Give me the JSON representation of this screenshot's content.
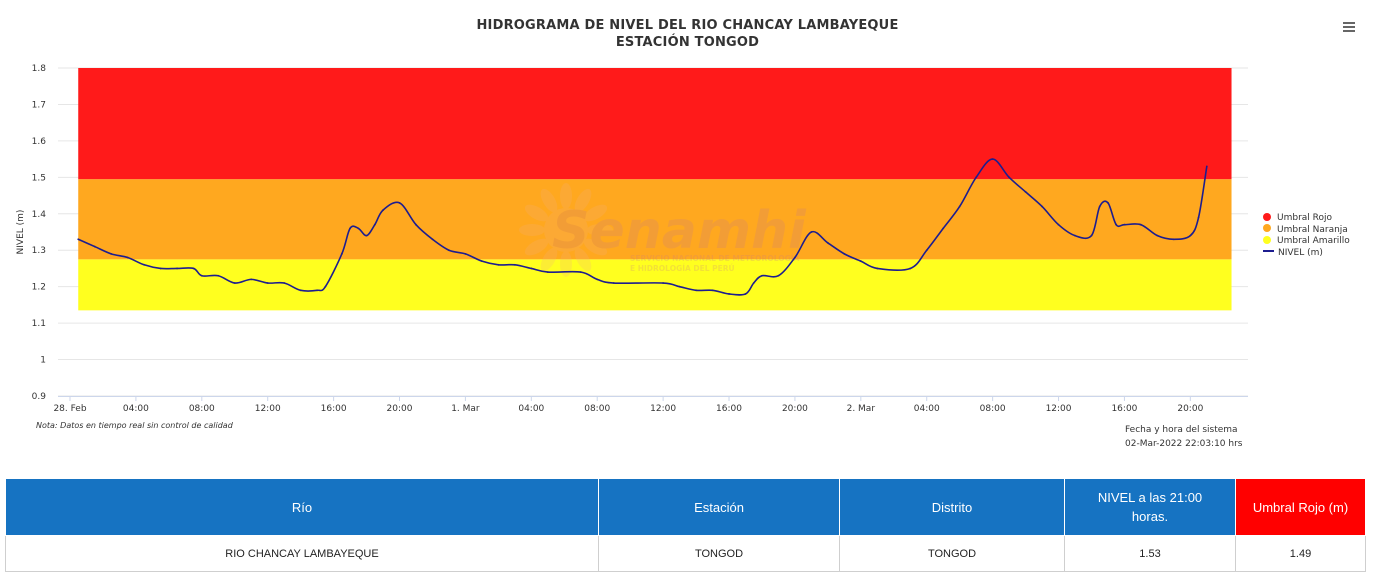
{
  "header": {
    "title_line1": "HIDROGRAMA DE NIVEL DEL RIO CHANCAY LAMBAYEQUE",
    "title_line2": "ESTACIÓN TONGOD",
    "menu_icon": "hamburger-menu-icon"
  },
  "watermark": {
    "brand": "Senamhi",
    "line1": "SERVICIO NACIONAL DE METEOROLOGÍA",
    "line2": "E HIDROLOGÍA DEL PERÚ"
  },
  "note": "Nota: Datos en tiempo real sin control de calidad",
  "system_time": {
    "label": "Fecha y hora del sistema",
    "value": "02-Mar-2022 22:03:10 hrs"
  },
  "legend": [
    {
      "label": "Umbral Rojo",
      "color": "#ff1a1a",
      "shape": "dot"
    },
    {
      "label": "Umbral Naranja",
      "color": "#ffa81f",
      "shape": "dot"
    },
    {
      "label": "Umbral Amarillo",
      "color": "#ffff1f",
      "shape": "dot"
    },
    {
      "label": "NIVEL (m)",
      "color": "#1d1d8f",
      "shape": "line"
    }
  ],
  "chart_data": {
    "type": "line",
    "title": "HIDROGRAMA DE NIVEL DEL RIO CHANCAY LAMBAYEQUE",
    "subtitle": "ESTACIÓN TONGOD",
    "ylabel": "NIVEL (m)",
    "xlabel": "",
    "ylim": [
      0.9,
      1.8
    ],
    "yticks": [
      0.9,
      1,
      1.1,
      1.2,
      1.3,
      1.4,
      1.5,
      1.6,
      1.7,
      1.8
    ],
    "ytick_labels": [
      "0.9",
      "1",
      "1.1",
      "1.2",
      "1.3",
      "1.4",
      "1.5",
      "1.6",
      "1.7",
      "1.8"
    ],
    "xlim": [
      "2022-02-28 00:00",
      "2022-03-02 23:30"
    ],
    "xtick_labels": [
      "28. Feb",
      "04:00",
      "08:00",
      "12:00",
      "16:00",
      "20:00",
      "1. Mar",
      "04:00",
      "08:00",
      "12:00",
      "16:00",
      "20:00",
      "2. Mar",
      "04:00",
      "08:00",
      "12:00",
      "16:00",
      "20:00"
    ],
    "bands": [
      {
        "name": "Umbral Amarillo",
        "from": 1.135,
        "to": 1.275,
        "color": "#ffff1f"
      },
      {
        "name": "Umbral Naranja",
        "from": 1.275,
        "to": 1.495,
        "color": "#ffa81f"
      },
      {
        "name": "Umbral Rojo",
        "from": 1.495,
        "to": 1.8,
        "color": "#ff1a1a"
      }
    ],
    "band_start": "2022-02-28 00:30",
    "band_end": "2022-03-02 22:30",
    "grid": true,
    "legend_position": "right",
    "series": [
      {
        "name": "NIVEL (m)",
        "color": "#1d1d8f",
        "points": [
          [
            "2022-02-28 00:30",
            1.33
          ],
          [
            "2022-02-28 01:30",
            1.31
          ],
          [
            "2022-02-28 02:30",
            1.29
          ],
          [
            "2022-02-28 03:30",
            1.28
          ],
          [
            "2022-02-28 04:30",
            1.26
          ],
          [
            "2022-02-28 05:30",
            1.25
          ],
          [
            "2022-02-28 06:30",
            1.25
          ],
          [
            "2022-02-28 07:30",
            1.25
          ],
          [
            "2022-02-28 08:00",
            1.23
          ],
          [
            "2022-02-28 09:00",
            1.23
          ],
          [
            "2022-02-28 10:00",
            1.21
          ],
          [
            "2022-02-28 11:00",
            1.22
          ],
          [
            "2022-02-28 12:00",
            1.21
          ],
          [
            "2022-02-28 13:00",
            1.21
          ],
          [
            "2022-02-28 14:00",
            1.19
          ],
          [
            "2022-02-28 15:00",
            1.19
          ],
          [
            "2022-02-28 15:30",
            1.2
          ],
          [
            "2022-02-28 16:30",
            1.29
          ],
          [
            "2022-02-28 17:00",
            1.36
          ],
          [
            "2022-02-28 17:30",
            1.36
          ],
          [
            "2022-02-28 18:00",
            1.34
          ],
          [
            "2022-02-28 18:30",
            1.37
          ],
          [
            "2022-02-28 19:00",
            1.41
          ],
          [
            "2022-02-28 20:00",
            1.43
          ],
          [
            "2022-02-28 21:00",
            1.37
          ],
          [
            "2022-02-28 22:00",
            1.33
          ],
          [
            "2022-02-28 23:00",
            1.3
          ],
          [
            "2022-03-01 00:00",
            1.29
          ],
          [
            "2022-03-01 01:00",
            1.27
          ],
          [
            "2022-03-01 02:00",
            1.26
          ],
          [
            "2022-03-01 03:00",
            1.26
          ],
          [
            "2022-03-01 04:00",
            1.25
          ],
          [
            "2022-03-01 05:00",
            1.24
          ],
          [
            "2022-03-01 07:00",
            1.24
          ],
          [
            "2022-03-01 08:00",
            1.22
          ],
          [
            "2022-03-01 09:00",
            1.21
          ],
          [
            "2022-03-01 12:00",
            1.21
          ],
          [
            "2022-03-01 13:00",
            1.2
          ],
          [
            "2022-03-01 14:00",
            1.19
          ],
          [
            "2022-03-01 15:00",
            1.19
          ],
          [
            "2022-03-01 16:00",
            1.18
          ],
          [
            "2022-03-01 17:00",
            1.18
          ],
          [
            "2022-03-01 17:30",
            1.21
          ],
          [
            "2022-03-01 18:00",
            1.23
          ],
          [
            "2022-03-01 19:00",
            1.23
          ],
          [
            "2022-03-01 20:00",
            1.28
          ],
          [
            "2022-03-01 21:00",
            1.35
          ],
          [
            "2022-03-01 22:00",
            1.32
          ],
          [
            "2022-03-01 23:00",
            1.29
          ],
          [
            "2022-03-02 00:00",
            1.27
          ],
          [
            "2022-03-02 01:00",
            1.25
          ],
          [
            "2022-03-02 03:00",
            1.25
          ],
          [
            "2022-03-02 04:00",
            1.3
          ],
          [
            "2022-03-02 05:00",
            1.36
          ],
          [
            "2022-03-02 06:00",
            1.42
          ],
          [
            "2022-03-02 07:00",
            1.5
          ],
          [
            "2022-03-02 08:00",
            1.55
          ],
          [
            "2022-03-02 09:00",
            1.5
          ],
          [
            "2022-03-02 10:00",
            1.46
          ],
          [
            "2022-03-02 11:00",
            1.42
          ],
          [
            "2022-03-02 12:00",
            1.37
          ],
          [
            "2022-03-02 13:00",
            1.34
          ],
          [
            "2022-03-02 14:00",
            1.34
          ],
          [
            "2022-03-02 14:30",
            1.42
          ],
          [
            "2022-03-02 15:00",
            1.43
          ],
          [
            "2022-03-02 15:30",
            1.37
          ],
          [
            "2022-03-02 16:00",
            1.37
          ],
          [
            "2022-03-02 17:00",
            1.37
          ],
          [
            "2022-03-02 18:00",
            1.34
          ],
          [
            "2022-03-02 19:00",
            1.33
          ],
          [
            "2022-03-02 20:00",
            1.34
          ],
          [
            "2022-03-02 20:30",
            1.39
          ],
          [
            "2022-03-02 21:00",
            1.53
          ]
        ]
      }
    ]
  },
  "table": {
    "headers": [
      "Río",
      "Estación",
      "Distrito",
      "NIVEL a las 21:00 horas.",
      "Umbral Rojo (m)"
    ],
    "rows": [
      [
        "RIO CHANCAY LAMBAYEQUE",
        "TONGOD",
        "TONGOD",
        "1.53",
        "1.49"
      ]
    ]
  }
}
